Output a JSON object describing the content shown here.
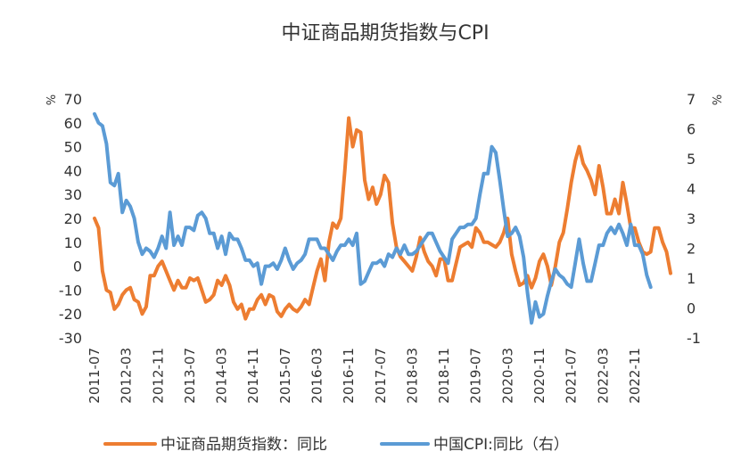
{
  "chart_data": {
    "type": "line",
    "title": "中证商品期货指数与CPI",
    "y_left_unit": "%",
    "y_right_unit": "%",
    "ylim_left": [
      -30,
      70
    ],
    "ylim_right": [
      -1,
      7
    ],
    "yticks_left": [
      -30,
      -20,
      -10,
      0,
      10,
      20,
      30,
      40,
      50,
      60,
      70
    ],
    "yticks_right": [
      -1,
      0,
      1,
      2,
      3,
      4,
      5,
      6,
      7
    ],
    "xticks": [
      "2011-07",
      "2012-03",
      "2012-11",
      "2013-07",
      "2014-03",
      "2014-11",
      "2015-07",
      "2016-03",
      "2016-11",
      "2017-07",
      "2018-03",
      "2018-11",
      "2019-07",
      "2020-03",
      "2020-11",
      "2021-07",
      "2022-03",
      "2022-11"
    ],
    "legend_position": "bottom",
    "grid": false,
    "series": [
      {
        "name": "中证商品期货指数：同比",
        "color": "#ED7D31",
        "axis": "left",
        "start": "2011-07",
        "values": [
          20,
          16,
          -2,
          -10,
          -11,
          -18,
          -16,
          -12,
          -10,
          -9,
          -14,
          -15,
          -20,
          -17,
          -4,
          -4,
          0,
          2,
          -2,
          -6,
          -10,
          -6,
          -9,
          -9,
          -5,
          -6,
          -5,
          -10,
          -15,
          -14,
          -12,
          -6,
          -8,
          -4,
          -8,
          -15,
          -18,
          -16,
          -22,
          -18,
          -18,
          -14,
          -12,
          -16,
          -12,
          -13,
          -19,
          -21,
          -18,
          -16,
          -18,
          -19,
          -17,
          -14,
          -16,
          -9,
          -2,
          3,
          -6,
          10,
          18,
          16,
          20,
          40,
          62,
          50,
          57,
          56,
          36,
          28,
          33,
          26,
          30,
          38,
          35,
          18,
          8,
          4,
          2,
          0,
          -2,
          4,
          12,
          6,
          2,
          0,
          -4,
          3,
          3,
          -6,
          -6,
          1,
          8,
          9,
          10,
          8,
          16,
          14,
          10,
          10,
          9,
          8,
          10,
          14,
          20,
          5,
          -2,
          -8,
          -7,
          -4,
          -9,
          -5,
          2,
          5,
          0,
          -8,
          0,
          10,
          14,
          24,
          35,
          44,
          50,
          43,
          40,
          36,
          30,
          42,
          33,
          22,
          22,
          28,
          22,
          35,
          26,
          16,
          16,
          10,
          6,
          5,
          6,
          16,
          16,
          10,
          6,
          -3
        ]
      },
      {
        "name": "中国CPI:同比（右）",
        "color": "#5B9BD5",
        "axis": "right",
        "start": "2011-07",
        "values": [
          6.5,
          6.2,
          6.1,
          5.5,
          4.2,
          4.1,
          4.5,
          3.2,
          3.6,
          3.4,
          3.0,
          2.2,
          1.8,
          2.0,
          1.9,
          1.7,
          2.0,
          2.4,
          2.0,
          3.2,
          2.1,
          2.4,
          2.1,
          2.7,
          2.7,
          2.6,
          3.1,
          3.2,
          3.0,
          2.5,
          2.5,
          2.0,
          2.4,
          1.8,
          2.5,
          2.3,
          2.3,
          2.0,
          1.6,
          1.6,
          1.4,
          1.5,
          0.8,
          1.4,
          1.4,
          1.5,
          1.3,
          1.6,
          2.0,
          1.6,
          1.3,
          1.5,
          1.6,
          1.8,
          2.3,
          2.3,
          2.3,
          2.0,
          2.0,
          1.8,
          1.6,
          1.9,
          2.1,
          2.1,
          2.3,
          2.1,
          2.5,
          0.8,
          0.9,
          1.2,
          1.5,
          1.5,
          1.6,
          1.4,
          1.8,
          1.7,
          2.0,
          1.8,
          2.1,
          1.8,
          1.8,
          1.9,
          2.1,
          2.3,
          2.5,
          2.5,
          2.2,
          1.9,
          1.7,
          1.5,
          2.3,
          2.5,
          2.7,
          2.7,
          2.8,
          2.8,
          3.0,
          3.8,
          4.5,
          4.5,
          5.4,
          5.2,
          4.3,
          3.3,
          2.4,
          2.5,
          2.7,
          2.4,
          1.7,
          0.5,
          -0.5,
          0.2,
          -0.3,
          -0.2,
          0.4,
          0.9,
          1.3,
          1.1,
          1.0,
          0.8,
          0.7,
          1.5,
          2.3,
          1.5,
          0.9,
          0.9,
          1.5,
          2.1,
          2.1,
          2.5,
          2.7,
          2.5,
          2.8,
          2.5,
          2.1,
          2.8,
          2.1,
          2.1,
          1.8,
          1.1,
          0.7
        ]
      }
    ]
  }
}
